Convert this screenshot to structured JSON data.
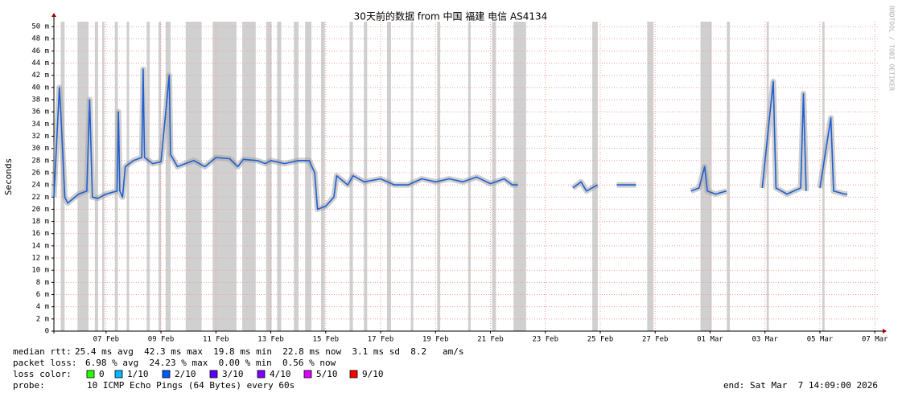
{
  "chart_data": {
    "type": "smokeping",
    "title": "30天前的数据 from 中国 福建 电信 AS4134",
    "y_label": "Seconds",
    "watermark": "RRDTOOL / TOBI OETIKER",
    "xlim": [
      36.1,
      66.17
    ],
    "ylim": [
      0,
      50.8
    ],
    "xticks": [
      {
        "value": 38,
        "label": "07 Feb"
      },
      {
        "value": 40,
        "label": "09 Feb"
      },
      {
        "value": 42,
        "label": "11 Feb"
      },
      {
        "value": 44,
        "label": "13 Feb"
      },
      {
        "value": 46,
        "label": "15 Feb"
      },
      {
        "value": 48,
        "label": "17 Feb"
      },
      {
        "value": 50,
        "label": "19 Feb"
      },
      {
        "value": 52,
        "label": "21 Feb"
      },
      {
        "value": 54,
        "label": "23 Feb"
      },
      {
        "value": 56,
        "label": "25 Feb"
      },
      {
        "value": 58,
        "label": "27 Feb"
      },
      {
        "value": 60,
        "label": "01 Mar"
      },
      {
        "value": 62,
        "label": "03 Mar"
      },
      {
        "value": 64,
        "label": "05 Mar"
      },
      {
        "value": 66,
        "label": "07 Mar"
      }
    ],
    "yticks": [
      0,
      {
        "value": 2,
        "label": "2 m"
      },
      {
        "value": 4,
        "label": "4 m"
      },
      {
        "value": 6,
        "label": "6 m"
      },
      {
        "value": 8,
        "label": "8 m"
      },
      {
        "value": 10,
        "label": "10 m"
      },
      {
        "value": 12,
        "label": "12 m"
      },
      {
        "value": 14,
        "label": "14 m"
      },
      {
        "value": 16,
        "label": "16 m"
      },
      {
        "value": 18,
        "label": "18 m"
      },
      {
        "value": 20,
        "label": "20 m"
      },
      {
        "value": 22,
        "label": "22 m"
      },
      {
        "value": 24,
        "label": "24 m"
      },
      {
        "value": 26,
        "label": "26 m"
      },
      {
        "value": 28,
        "label": "28 m"
      },
      {
        "value": 30,
        "label": "30 m"
      },
      {
        "value": 32,
        "label": "32 m"
      },
      {
        "value": 34,
        "label": "34 m"
      },
      {
        "value": 36,
        "label": "36 m"
      },
      {
        "value": 38,
        "label": "38 m"
      },
      {
        "value": 40,
        "label": "40 m"
      },
      {
        "value": 42,
        "label": "42 m"
      },
      {
        "value": 44,
        "label": "44 m"
      },
      {
        "value": 46,
        "label": "46 m"
      },
      {
        "value": 48,
        "label": "48 m"
      },
      {
        "value": 50,
        "label": "50 m"
      }
    ],
    "grid": true,
    "smoke_color": "#a0a0a0",
    "loss_period_color": "#c8c8c8",
    "series": [
      {
        "name": "median rtt",
        "color": "#1f5fd0",
        "x": [
          36.1,
          36.3,
          36.35,
          36.5,
          36.6,
          37.0,
          37.3,
          37.4,
          37.5,
          37.7,
          38.0,
          38.4,
          38.45,
          38.5,
          38.6,
          38.7,
          39.0,
          39.3,
          39.35,
          39.4,
          39.7,
          40.0,
          40.3,
          40.35,
          40.6,
          41.0,
          41.2,
          41.6,
          42.0,
          42.5,
          42.8,
          43.0,
          43.5,
          43.8,
          44.0,
          44.5,
          45.0,
          45.4,
          45.6,
          45.7,
          46.0,
          46.3,
          46.4,
          46.8,
          47.0,
          47.4,
          48.0,
          48.5,
          49.0,
          49.5,
          50.0,
          50.5,
          51.0,
          51.5,
          52.0,
          52.5,
          52.8,
          53.0,
          54.0,
          55.0,
          55.3,
          55.5,
          55.9,
          56.2,
          56.6,
          57.3,
          58.5,
          59.3,
          59.6,
          59.8,
          59.9,
          60.2,
          60.6,
          61.2,
          61.9,
          62.3,
          62.4,
          62.8,
          63.3,
          63.4,
          63.5,
          63.8,
          64.0,
          64.4,
          64.5,
          64.9,
          65.0
        ],
        "values": [
          22,
          40,
          36,
          22,
          21,
          22.5,
          23,
          38,
          22,
          21.8,
          22.5,
          23,
          36,
          23,
          22,
          27,
          28,
          28.5,
          43,
          28.5,
          27.5,
          27.8,
          42,
          29,
          27,
          27.7,
          28,
          27,
          28.5,
          28.3,
          27,
          28.2,
          28,
          27.5,
          28,
          27.5,
          28,
          28,
          26,
          20,
          20.5,
          22,
          25.5,
          24,
          25.5,
          24.5,
          25,
          24,
          24,
          25,
          24.5,
          25,
          24.5,
          25.3,
          24.2,
          25,
          24,
          24,
          null,
          23.5,
          24.5,
          23,
          24,
          null,
          24,
          24,
          null,
          23,
          23.5,
          27,
          23,
          22.5,
          23,
          null,
          23.5,
          41,
          23.5,
          22.5,
          23.5,
          39,
          23,
          null,
          23.5,
          35,
          23,
          22.5,
          22.5
        ]
      }
    ],
    "loss_periods": [
      [
        36.35,
        36.49
      ],
      [
        36.96,
        37.36
      ],
      [
        37.59,
        37.71
      ],
      [
        37.86,
        37.94
      ],
      [
        38.32,
        38.43
      ],
      [
        38.75,
        38.84
      ],
      [
        39.48,
        39.59
      ],
      [
        39.91,
        40.0
      ],
      [
        40.17,
        40.35
      ],
      [
        40.9,
        41.48
      ],
      [
        41.88,
        42.75
      ],
      [
        42.96,
        43.45
      ],
      [
        43.83,
        44.03
      ],
      [
        44.23,
        44.38
      ],
      [
        44.84,
        45.01
      ],
      [
        45.25,
        45.48
      ],
      [
        45.83,
        45.97
      ],
      [
        46.87,
        46.99
      ],
      [
        47.39,
        47.51
      ],
      [
        48.23,
        48.38
      ],
      [
        49.1,
        49.19
      ],
      [
        50.06,
        50.17
      ],
      [
        51.19,
        51.28
      ],
      [
        52.06,
        52.2
      ],
      [
        52.84,
        53.3
      ],
      [
        55.71,
        55.91
      ],
      [
        57.71,
        57.94
      ],
      [
        59.65,
        60.06
      ],
      [
        60.61,
        60.72
      ],
      [
        62.06,
        62.14
      ],
      [
        64.09,
        64.17
      ]
    ],
    "stats": [
      {
        "label": "median rtt:",
        "text": "25.4 ms avg  42.3 ms max  19.8 ms min  22.8 ms now  3.1 ms sd  8.2   am/s"
      },
      {
        "label": "packet loss:",
        "text": "6.98 % avg  24.23 % max  0.00 % min  0.56 % now"
      }
    ],
    "loss_color_label": "loss color:",
    "loss_colors": [
      {
        "name": "0",
        "color": "#26ff00"
      },
      {
        "name": "1/10",
        "color": "#00b8ff"
      },
      {
        "name": "2/10",
        "color": "#0059ff"
      },
      {
        "name": "3/10",
        "color": "#5e00ff"
      },
      {
        "name": "4/10",
        "color": "#7e00ff"
      },
      {
        "name": "5/10",
        "color": "#dd00ff"
      },
      {
        "name": "9/10",
        "color": "#ff0000"
      }
    ],
    "probe_label": "probe:",
    "probe": "10 ICMP Echo Pings (64 Bytes) every 60s",
    "end": "end: Sat Mar  7 14:09:00 2026"
  }
}
